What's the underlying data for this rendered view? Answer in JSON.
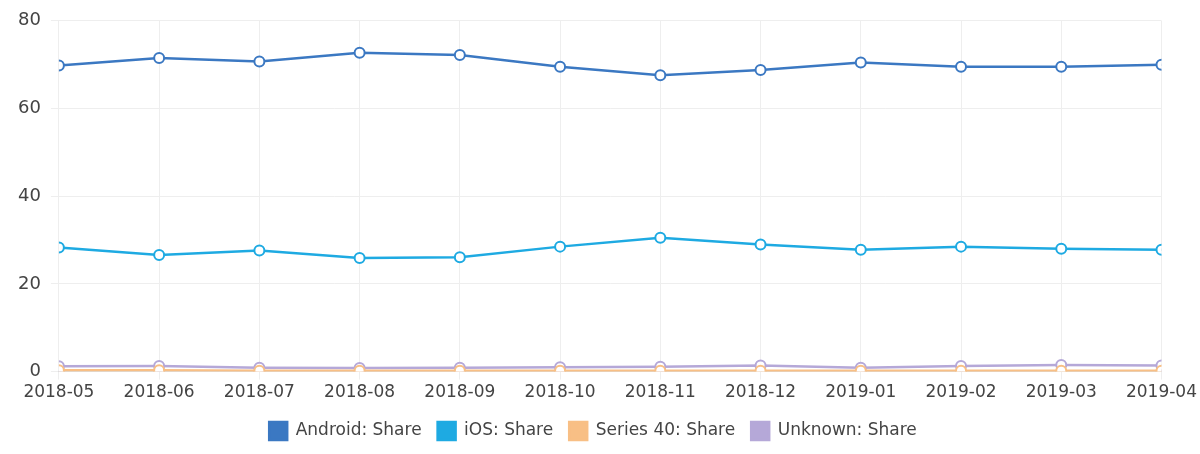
{
  "chart_data": {
    "type": "line",
    "categories": [
      "2018-05",
      "2018-06",
      "2018-07",
      "2018-08",
      "2018-09",
      "2018-10",
      "2018-11",
      "2018-12",
      "2019-01",
      "2019-02",
      "2019-03",
      "2019-04"
    ],
    "series": [
      {
        "name": "Android: Share",
        "color": "#3b78c2",
        "values": [
          69.8,
          71.5,
          70.7,
          72.7,
          72.2,
          69.5,
          67.6,
          68.8,
          70.5,
          69.5,
          69.5,
          70.0
        ]
      },
      {
        "name": "iOS: Share",
        "color": "#1eaae2",
        "values": [
          28.3,
          26.6,
          27.6,
          25.9,
          26.1,
          28.5,
          30.5,
          29.0,
          27.8,
          28.5,
          28.0,
          27.8
        ]
      },
      {
        "name": "Series 40: Share",
        "color": "#f8bf85",
        "values": [
          0.3,
          0.3,
          0.2,
          0.2,
          0.2,
          0.2,
          0.2,
          0.2,
          0.2,
          0.2,
          0.2,
          0.2
        ]
      },
      {
        "name": "Unknown: Share",
        "color": "#b5a8d8",
        "values": [
          1.2,
          1.3,
          0.9,
          0.8,
          0.9,
          1.0,
          1.1,
          1.4,
          0.9,
          1.3,
          1.5,
          1.4
        ]
      }
    ],
    "ylim": [
      0,
      80
    ],
    "yticks": [
      0,
      20,
      40,
      60,
      80
    ],
    "grid": true,
    "legend": "bottom",
    "marker": "circle"
  }
}
